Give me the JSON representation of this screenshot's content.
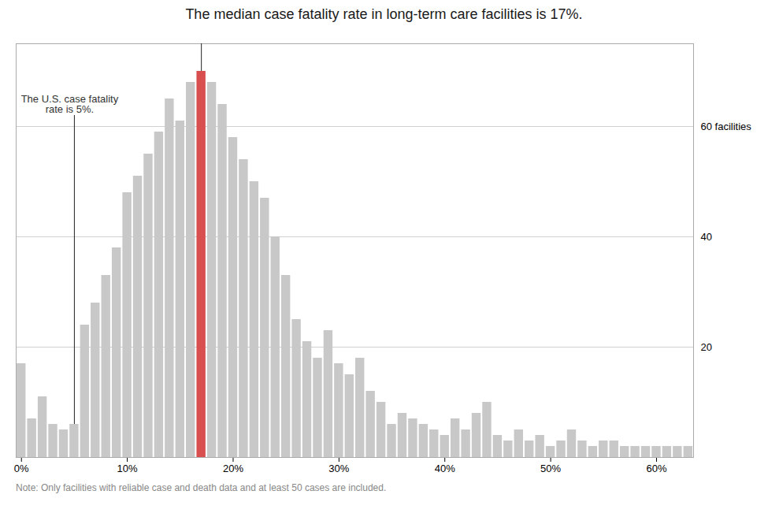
{
  "chart_data": {
    "type": "bar",
    "title": "The median case fatality rate in long-term care facilities is 17%.",
    "caption": "Note: Only facilities with reliable case and death data and at least 50 cases are included.",
    "x": [
      0,
      1,
      2,
      3,
      4,
      5,
      6,
      7,
      8,
      9,
      10,
      11,
      12,
      13,
      14,
      15,
      16,
      17,
      18,
      19,
      20,
      21,
      22,
      23,
      24,
      25,
      26,
      27,
      28,
      29,
      30,
      31,
      32,
      33,
      34,
      35,
      36,
      37,
      38,
      39,
      40,
      41,
      42,
      43,
      44,
      45,
      46,
      47,
      48,
      49,
      50,
      51,
      52,
      53,
      54,
      55,
      56,
      57,
      58,
      59,
      60,
      61,
      62,
      63
    ],
    "values": [
      17,
      7,
      11,
      6,
      5,
      6,
      24,
      28,
      33,
      38,
      48,
      51,
      55,
      59,
      65,
      61,
      68,
      70,
      68,
      64,
      58,
      54,
      50,
      47,
      40,
      33,
      25,
      21,
      18,
      23,
      17,
      15,
      18,
      12,
      10,
      6,
      8,
      7,
      6,
      5,
      4,
      7,
      5,
      8,
      10,
      4,
      3,
      5,
      3,
      4,
      2,
      3,
      5,
      3,
      2,
      3,
      3,
      2,
      2,
      2,
      2,
      2,
      2,
      2
    ],
    "colors": [
      "#c8c8c8",
      "#c8c8c8",
      "#c8c8c8",
      "#c8c8c8",
      "#c8c8c8",
      "#c8c8c8",
      "#c8c8c8",
      "#c8c8c8",
      "#c8c8c8",
      "#c8c8c8",
      "#c8c8c8",
      "#c8c8c8",
      "#c8c8c8",
      "#c8c8c8",
      "#c8c8c8",
      "#c8c8c8",
      "#c8c8c8",
      "#d94f4f",
      "#c8c8c8",
      "#c8c8c8",
      "#c8c8c8",
      "#c8c8c8",
      "#c8c8c8",
      "#c8c8c8",
      "#c8c8c8",
      "#c8c8c8",
      "#c8c8c8",
      "#c8c8c8",
      "#c8c8c8",
      "#c8c8c8",
      "#c8c8c8",
      "#c8c8c8",
      "#c8c8c8",
      "#c8c8c8",
      "#c8c8c8",
      "#c8c8c8",
      "#c8c8c8",
      "#c8c8c8",
      "#c8c8c8",
      "#c8c8c8",
      "#c8c8c8",
      "#c8c8c8",
      "#c8c8c8",
      "#c8c8c8",
      "#c8c8c8",
      "#c8c8c8",
      "#c8c8c8",
      "#c8c8c8",
      "#c8c8c8",
      "#c8c8c8",
      "#c8c8c8",
      "#c8c8c8",
      "#c8c8c8",
      "#c8c8c8",
      "#c8c8c8",
      "#c8c8c8",
      "#c8c8c8",
      "#c8c8c8",
      "#c8c8c8",
      "#c8c8c8",
      "#c8c8c8",
      "#c8c8c8",
      "#c8c8c8",
      "#c8c8c8"
    ],
    "xlim": [
      -0.5,
      63.5
    ],
    "xticks": [
      {
        "value": 0,
        "label": "0%"
      },
      {
        "value": 10,
        "label": "10%"
      },
      {
        "value": 20,
        "label": "20%"
      },
      {
        "value": 30,
        "label": "30%"
      },
      {
        "value": 40,
        "label": "40%"
      },
      {
        "value": 50,
        "label": "50%"
      },
      {
        "value": 60,
        "label": "60%"
      }
    ],
    "ylim": [
      0,
      75
    ],
    "yticks": [
      20,
      40,
      {
        "value": 60,
        "label": "60 facilities"
      }
    ],
    "grid": true,
    "median_line": {
      "x": 17
    },
    "annotations": [
      {
        "x": 5,
        "y": 62,
        "text": "The U.S. case fatality\nrate is 5%."
      }
    ]
  }
}
